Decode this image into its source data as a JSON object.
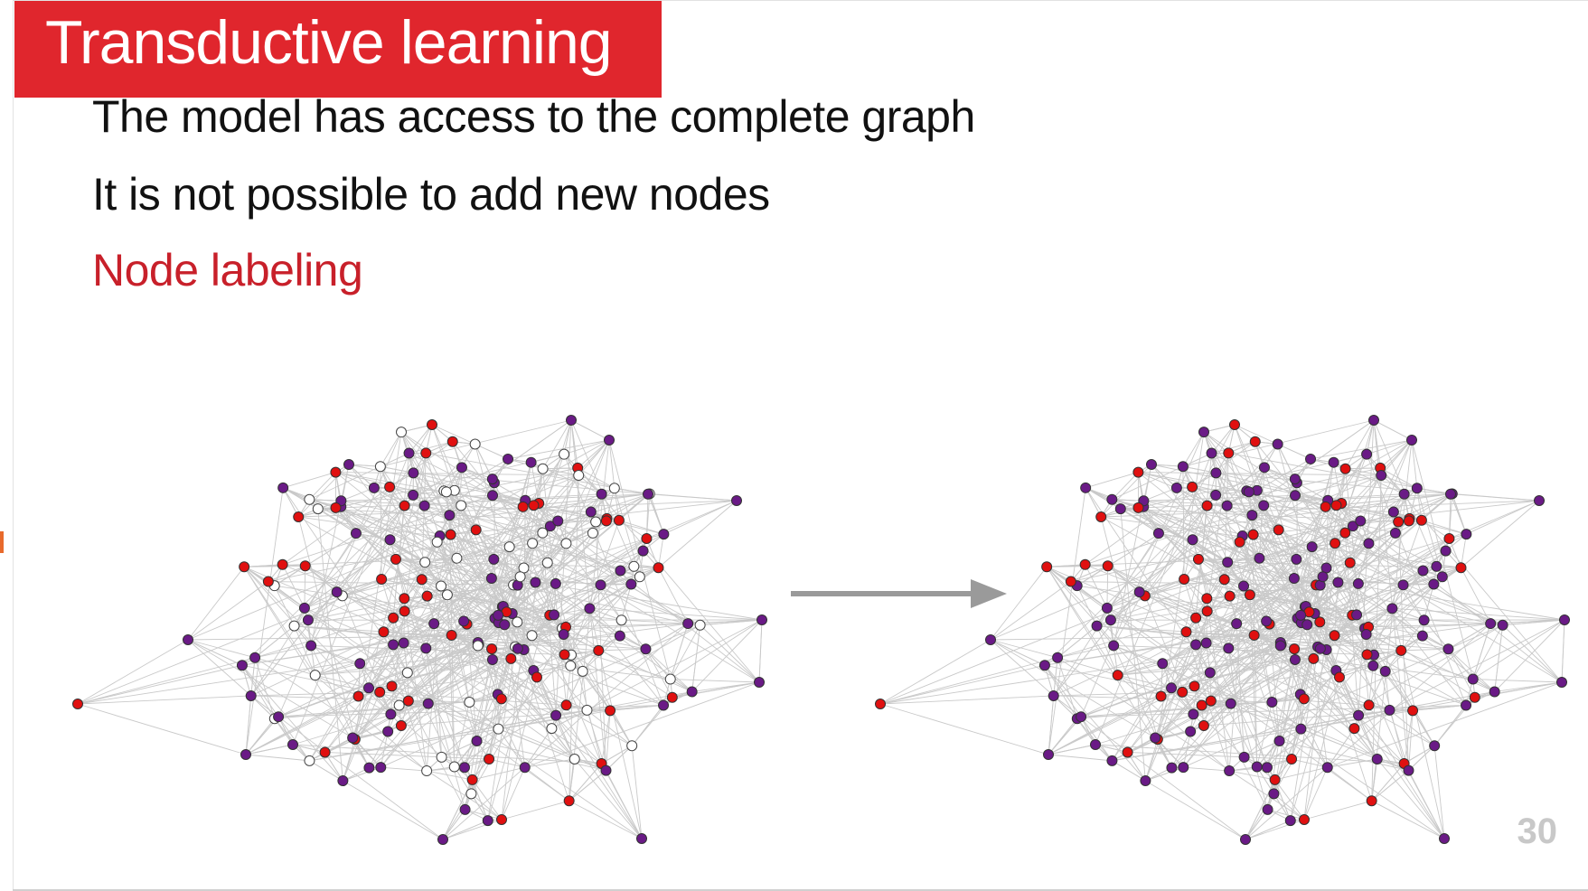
{
  "slide": {
    "title": "Transductive learning",
    "bullets": [
      "The model has access to the complete graph",
      "It is not possible to add new nodes",
      "Node labeling"
    ],
    "page_number": "30"
  },
  "colors": {
    "title_background": "#e0262d",
    "highlight_text": "#c8202a",
    "node_red": "#e01010",
    "node_purple": "#6a1a86",
    "node_unlabeled": "#ffffff",
    "edge": "#c9c9c9",
    "arrow": "#9a9a9a"
  },
  "icons": {
    "arrow": "right-arrow-icon"
  },
  "graphs": {
    "left": {
      "description_state": "partially-labeled"
    },
    "right": {
      "description_state": "fully-labeled"
    }
  }
}
